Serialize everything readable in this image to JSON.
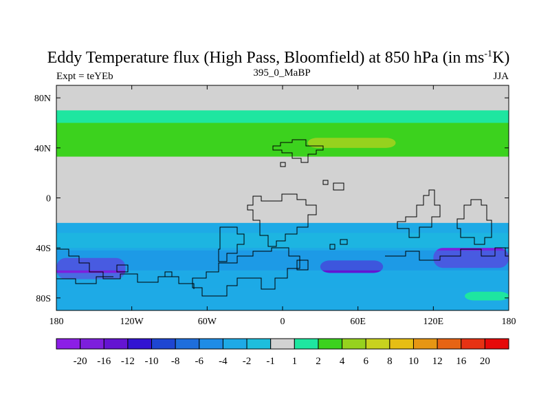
{
  "chart_data": {
    "type": "heatmap",
    "title_main": "Eddy Temperature flux (High Pass, Bloomfield) at 850 hPa (in ms",
    "title_sup": "-1",
    "title_end": "K)",
    "left_subtitle": "Expt = teYEb",
    "center_subtitle": "395_0_MaBP",
    "right_subtitle": "JJA",
    "lon_range": [
      -180,
      180
    ],
    "lat_range": [
      -90,
      90
    ],
    "x_ticks": [
      {
        "value": -180,
        "label": "180"
      },
      {
        "value": -120,
        "label": "120W"
      },
      {
        "value": -60,
        "label": "60W"
      },
      {
        "value": 0,
        "label": "0"
      },
      {
        "value": 60,
        "label": "60E"
      },
      {
        "value": 120,
        "label": "120E"
      },
      {
        "value": 180,
        "label": "180"
      }
    ],
    "y_ticks": [
      {
        "value": 80,
        "label": "80N"
      },
      {
        "value": 40,
        "label": "40N"
      },
      {
        "value": 0,
        "label": "0"
      },
      {
        "value": -40,
        "label": "40S"
      },
      {
        "value": -80,
        "label": "80S"
      }
    ],
    "colorbar": {
      "levels": [
        "-20",
        "-16",
        "-12",
        "-10",
        "-8",
        "-6",
        "-4",
        "-2",
        "-1",
        "1",
        "2",
        "4",
        "6",
        "8",
        "10",
        "12",
        "16",
        "20"
      ],
      "colors": [
        "#8c1ee6",
        "#7d1fdc",
        "#6414d2",
        "#3214d2",
        "#1e46d2",
        "#1e6edc",
        "#1e8ce6",
        "#1eaae6",
        "#1ebedc",
        "#d2d2d2",
        "#1ee6a0",
        "#3cd21e",
        "#96d21e",
        "#c8d21e",
        "#e6be14",
        "#e69614",
        "#e66414",
        "#e63214",
        "#e60a0a"
      ]
    },
    "zonal_bands": [
      {
        "lat_min": 70,
        "lat_max": 60,
        "value": 1.5
      },
      {
        "lat_min": 60,
        "lat_max": 33,
        "value": 3
      },
      {
        "lat_min": 48,
        "lat_max": 40,
        "value": 5,
        "lon_min": 20,
        "lon_max": 90
      },
      {
        "lat_min": -20,
        "lat_max": -90,
        "value": -3
      },
      {
        "lat_min": -48,
        "lat_max": -65,
        "value": -16,
        "lon_min": -180,
        "lon_max": -125
      },
      {
        "lat_min": -50,
        "lat_max": -60,
        "value": -12,
        "lon_min": 30,
        "lon_max": 80
      },
      {
        "lat_min": -40,
        "lat_max": -56,
        "value": -18,
        "lon_min": 120,
        "lon_max": 180
      },
      {
        "lat_min": -75,
        "lat_max": -82,
        "value": 1.5,
        "lon_min": 145,
        "lon_max": 180
      }
    ]
  }
}
